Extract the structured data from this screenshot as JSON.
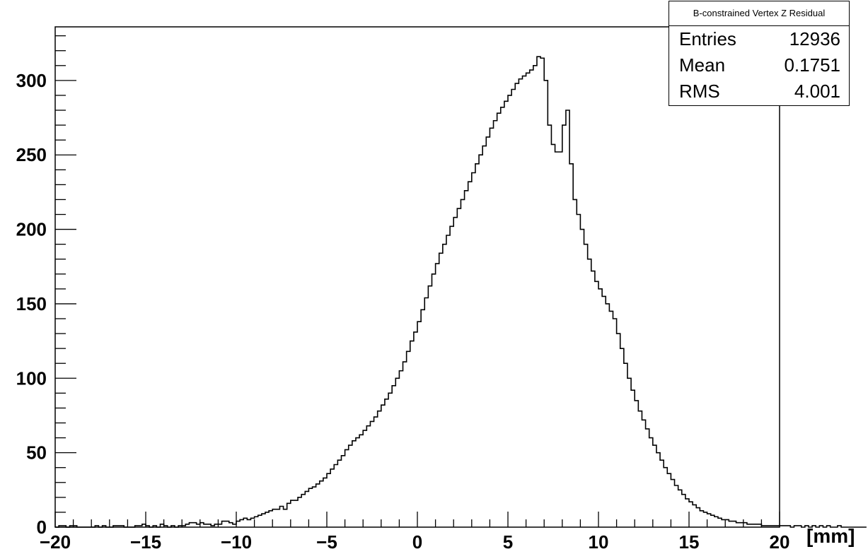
{
  "chart_data": {
    "type": "histogram",
    "title": "B-constrained Vertex Z Residual",
    "xlabel": "[mm]",
    "ylabel": "",
    "xlim": [
      -20,
      20
    ],
    "ylim": [
      0,
      336
    ],
    "grid": false,
    "x_ticks": [
      -20,
      -15,
      -10,
      -5,
      0,
      5,
      10,
      15,
      20
    ],
    "x_tick_labels": [
      "−20",
      "−15",
      "−10",
      "−5",
      "0",
      "5",
      "10",
      "15",
      "20"
    ],
    "y_ticks": [
      0,
      50,
      100,
      150,
      200,
      250,
      300
    ],
    "y_tick_labels": [
      "0",
      "50",
      "100",
      "150",
      "200",
      "250",
      "300"
    ],
    "bin_width": 0.2,
    "bin_start": -20,
    "counts": [
      0,
      1,
      1,
      0,
      1,
      1,
      0,
      0,
      0,
      0,
      0,
      1,
      0,
      1,
      0,
      0,
      1,
      1,
      1,
      0,
      0,
      0,
      1,
      1,
      2,
      1,
      0,
      1,
      0,
      2,
      1,
      0,
      1,
      0,
      1,
      1,
      2,
      3,
      3,
      2,
      3,
      2,
      2,
      1,
      2,
      2,
      4,
      4,
      3,
      2,
      4,
      5,
      6,
      5,
      6,
      7,
      8,
      9,
      10,
      11,
      12,
      12,
      14,
      12,
      16,
      18,
      18,
      20,
      22,
      24,
      26,
      27,
      29,
      31,
      33,
      36,
      39,
      42,
      45,
      48,
      52,
      55,
      58,
      60,
      62,
      65,
      68,
      71,
      74,
      78,
      82,
      86,
      90,
      95,
      100,
      105,
      111,
      118,
      125,
      131,
      138,
      146,
      154,
      162,
      170,
      177,
      184,
      190,
      196,
      202,
      208,
      214,
      220,
      226,
      232,
      238,
      244,
      250,
      256,
      262,
      268,
      273,
      278,
      282,
      286,
      290,
      294,
      298,
      301,
      303,
      305,
      307,
      310,
      316,
      315,
      300,
      270,
      257,
      252,
      252,
      270,
      280,
      244,
      220,
      210,
      200,
      190,
      180,
      172,
      165,
      160,
      155,
      150,
      145,
      140,
      130,
      120,
      110,
      100,
      92,
      85,
      78,
      72,
      66,
      60,
      55,
      50,
      45,
      40,
      36,
      32,
      28,
      25,
      22,
      19,
      17,
      15,
      13,
      11,
      10,
      9,
      8,
      7,
      6,
      5,
      5,
      4,
      4,
      3,
      3,
      3,
      2,
      2,
      2,
      2,
      1,
      1,
      1,
      1,
      1,
      1,
      1,
      1,
      0,
      1,
      1,
      0,
      1,
      0,
      1,
      0,
      1,
      0,
      1,
      0,
      0,
      1,
      0,
      0,
      0,
      0,
      0,
      0,
      0
    ]
  },
  "stats_box": {
    "title": "B-constrained Vertex Z Residual",
    "rows": [
      {
        "label": "Entries",
        "value": "12936"
      },
      {
        "label": "Mean",
        "value": "0.1751"
      },
      {
        "label": "RMS",
        "value": "4.001"
      }
    ]
  }
}
